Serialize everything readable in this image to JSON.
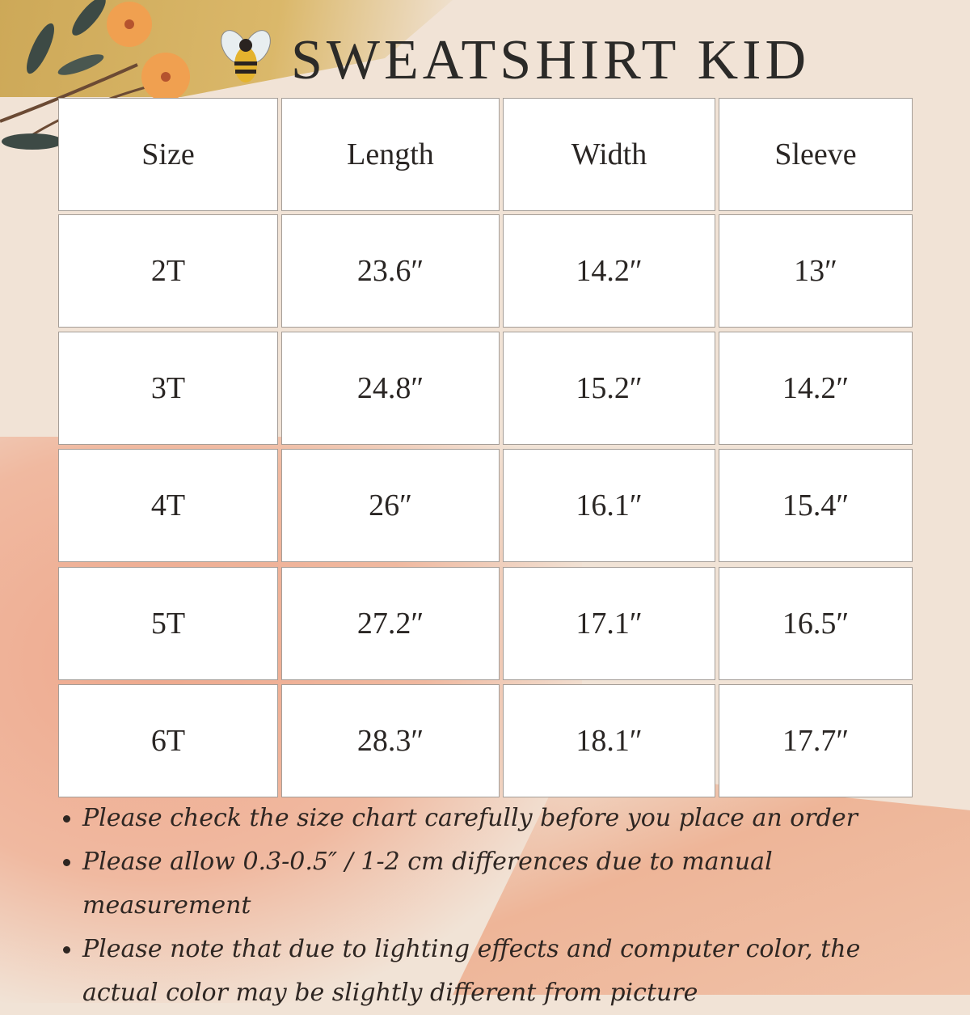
{
  "title": "SWEATSHIRT KID",
  "table": {
    "headers": [
      "Size",
      "Length",
      "Width",
      "Sleeve"
    ],
    "rows": [
      [
        "2T",
        "23.6″",
        "14.2″",
        "13″"
      ],
      [
        "3T",
        "24.8″",
        "15.2″",
        "14.2″"
      ],
      [
        "4T",
        "26″",
        "16.1″",
        "15.4″"
      ],
      [
        "5T",
        "27.2″",
        "17.1″",
        "16.5″"
      ],
      [
        "6T",
        "28.3″",
        "18.1″",
        "17.7″"
      ]
    ]
  },
  "notes": [
    "Please check the size chart carefully before you place an order",
    "Please allow 0.3-0.5″ / 1-2 cm differences due to manual measurement",
    "Please note that due to lighting effects and computer color, the actual color may be slightly different from picture"
  ],
  "colors": {
    "background": "#f1e3d6",
    "gold": "#c9a24a",
    "peach": "#eea98e",
    "flower": "#f0a050",
    "leaf": "#3d4a45"
  }
}
